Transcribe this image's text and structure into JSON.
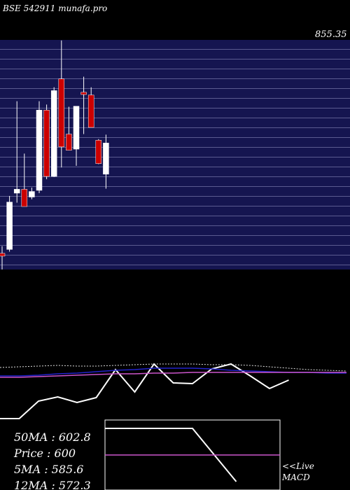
{
  "chart_data": [
    {
      "type": "candlestick",
      "title": "BSE 542911 munafa.pro",
      "price_label": "855.35",
      "ylim": [
        430,
        842
      ],
      "up_color": "#ffffff",
      "down_color": "#cc0000",
      "open": [
        459,
        466,
        567,
        574,
        560,
        572,
        716,
        597,
        772,
        673,
        646,
        748,
        743,
        662,
        601
      ],
      "high": [
        472,
        562,
        732,
        638,
        577,
        732,
        726,
        757,
        841,
        722,
        723,
        776,
        757,
        664,
        672
      ],
      "low": [
        430,
        462,
        550,
        543,
        556,
        567,
        592,
        596,
        613,
        644,
        616,
        673,
        685,
        619,
        575
      ],
      "close": [
        454,
        551,
        574,
        543,
        570,
        716,
        597,
        751,
        650,
        644,
        723,
        744,
        685,
        620,
        657
      ]
    },
    {
      "type": "line",
      "ylim": [
        0,
        100
      ],
      "series": [
        {
          "color": "#ffffff",
          "values": [
            2,
            2,
            27,
            33,
            25,
            32,
            72,
            40,
            80,
            53,
            52,
            73,
            80,
            63,
            45,
            57
          ]
        },
        {
          "color": "#2222cc",
          "values": [
            63,
            63,
            64,
            66,
            67,
            69,
            71,
            72,
            74,
            74,
            74,
            73,
            71,
            70,
            69,
            68,
            68,
            67,
            67
          ]
        },
        {
          "color": "#cc55cc",
          "values": [
            61,
            61,
            62,
            63,
            64,
            65,
            66,
            66,
            67,
            67,
            68,
            68,
            68,
            68,
            68,
            68,
            68,
            68,
            68
          ]
        },
        {
          "color": "#dddddd",
          "dashed": true,
          "values": [
            75,
            76,
            77,
            78,
            77,
            77,
            78,
            79,
            80,
            80,
            80,
            79,
            79,
            78,
            76,
            74,
            72,
            71,
            70
          ]
        }
      ]
    },
    {
      "type": "line",
      "title": "MACD",
      "ylim": [
        0,
        100
      ],
      "series": [
        {
          "color": "#ffffff",
          "values": [
            88,
            88,
            88,
            12
          ]
        },
        {
          "color": "#cc55cc",
          "values": [
            50,
            50,
            50,
            50,
            50,
            50
          ]
        }
      ],
      "live_label": "<<Live"
    }
  ],
  "info": [
    "50MA : 602.8",
    "Price : 600",
    "5MA : 585.6",
    "12MA : 572.3"
  ]
}
